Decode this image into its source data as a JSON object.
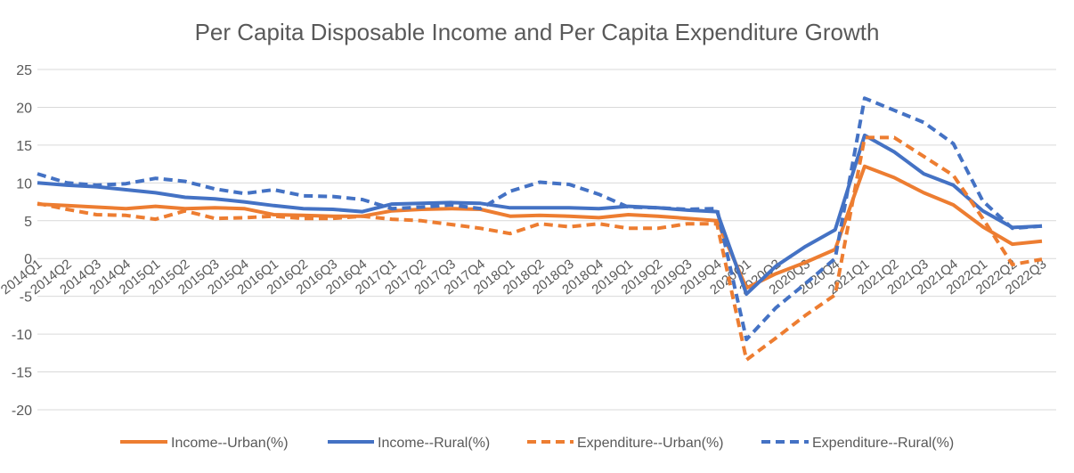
{
  "chart_data": {
    "type": "line",
    "title": "Per Capita Disposable Income and Per Capita Expenditure Growth",
    "xlabel": "",
    "ylabel": "",
    "ylim": [
      -20,
      25
    ],
    "yticks": [
      25,
      20,
      15,
      10,
      5,
      0,
      -5,
      -10,
      -15,
      -20
    ],
    "grid": true,
    "legend_position": "bottom",
    "categories": [
      "2014Q1",
      "2014Q2",
      "2014Q3",
      "2014Q4",
      "2015Q1",
      "2015Q2",
      "2015Q3",
      "2015Q4",
      "2016Q1",
      "2016Q2",
      "2016Q3",
      "2016Q4",
      "2017Q1",
      "2017Q2",
      "2017Q3",
      "2017Q4",
      "2018Q1",
      "2018Q2",
      "2018Q3",
      "2018Q4",
      "2019Q1",
      "2019Q2",
      "2019Q3",
      "2019Q4",
      "2020Q1",
      "2020Q2",
      "2020Q3",
      "2020Q4",
      "2021Q1",
      "2021Q2",
      "2021Q3",
      "2021Q4",
      "2022Q1",
      "2022Q2",
      "2022Q3"
    ],
    "series": [
      {
        "name": "Income--Urban(%)",
        "color": "#ED7D31",
        "dash": "solid",
        "values": [
          7.2,
          7.0,
          6.8,
          6.6,
          6.9,
          6.6,
          6.7,
          6.6,
          5.8,
          5.7,
          5.6,
          5.6,
          6.3,
          6.5,
          6.6,
          6.5,
          5.6,
          5.7,
          5.6,
          5.4,
          5.8,
          5.6,
          5.3,
          5.0,
          -3.9,
          -2.0,
          -0.5,
          1.2,
          12.2,
          10.7,
          8.7,
          7.1,
          4.2,
          1.9,
          2.3
        ]
      },
      {
        "name": "Income--Rural(%)",
        "color": "#4472C4",
        "dash": "solid",
        "values": [
          10.0,
          9.7,
          9.5,
          9.1,
          8.7,
          8.1,
          7.9,
          7.5,
          7.0,
          6.6,
          6.5,
          6.2,
          7.2,
          7.3,
          7.4,
          7.3,
          6.7,
          6.7,
          6.7,
          6.6,
          6.9,
          6.7,
          6.4,
          6.2,
          -4.7,
          -1.0,
          1.6,
          3.8,
          16.3,
          14.1,
          11.2,
          9.7,
          6.3,
          4.1,
          4.3
        ]
      },
      {
        "name": "Expenditure--Urban(%)",
        "color": "#ED7D31",
        "dash": "dashed",
        "values": [
          7.3,
          6.5,
          5.8,
          5.7,
          5.2,
          6.3,
          5.3,
          5.4,
          5.6,
          5.3,
          5.3,
          5.6,
          5.2,
          5.0,
          4.5,
          4.0,
          3.3,
          4.6,
          4.2,
          4.6,
          4.0,
          4.0,
          4.6,
          4.6,
          -13.4,
          -10.5,
          -7.5,
          -4.8,
          16.0,
          16.0,
          13.5,
          11.0,
          5.3,
          -0.8,
          -0.1
        ]
      },
      {
        "name": "Expenditure--Rural(%)",
        "color": "#4472C4",
        "dash": "dashed",
        "values": [
          11.2,
          10.0,
          9.7,
          9.9,
          10.6,
          10.2,
          9.2,
          8.6,
          9.1,
          8.3,
          8.2,
          7.8,
          6.6,
          6.8,
          7.1,
          6.6,
          8.9,
          10.1,
          9.8,
          8.5,
          6.8,
          6.7,
          6.5,
          6.6,
          -10.7,
          -6.5,
          -3.3,
          0.0,
          21.2,
          19.6,
          18.0,
          15.2,
          7.6,
          4.0,
          4.3
        ]
      }
    ]
  }
}
